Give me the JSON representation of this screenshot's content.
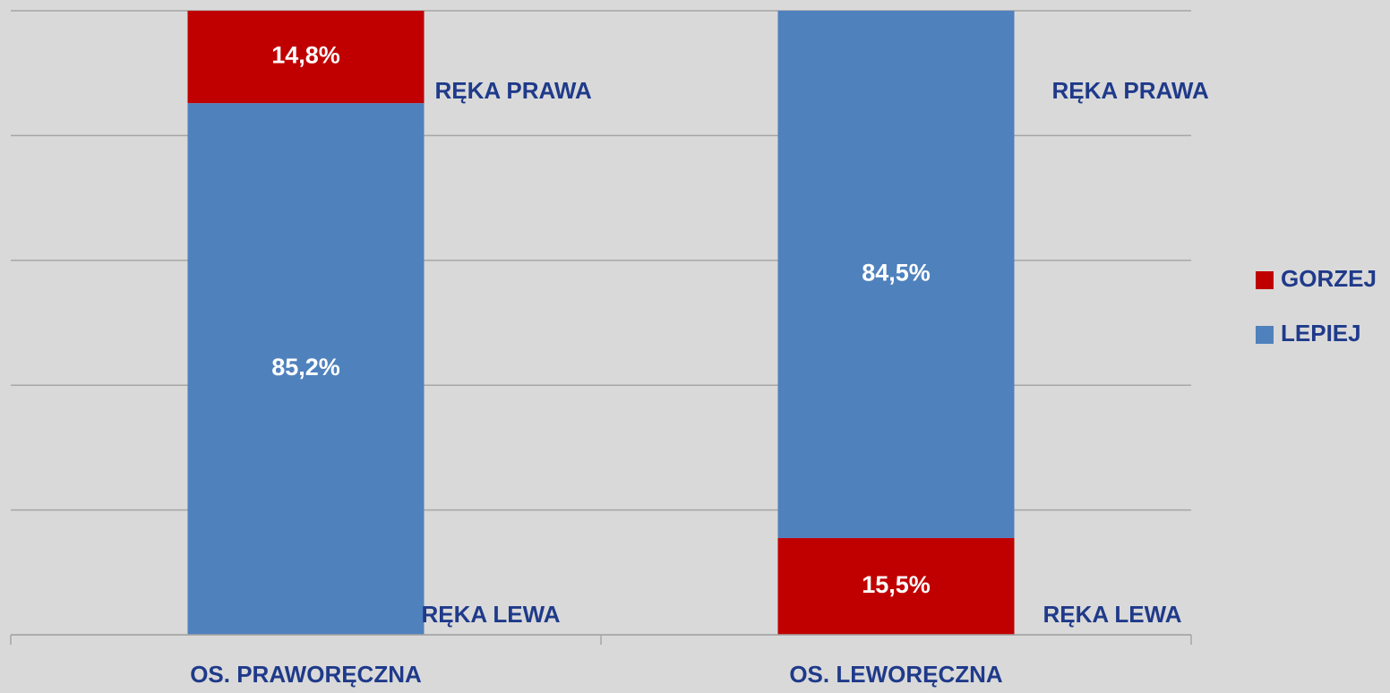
{
  "chart_data": {
    "type": "stacked_bar",
    "categories": [
      "OS. PRAWORĘCZNA",
      "OS. LEWORĘCZNA"
    ],
    "series": [
      {
        "name": "GORZEJ",
        "color": "#c00000",
        "values": [
          14.8,
          15.5
        ],
        "value_labels": [
          "14,8%",
          "15,5%"
        ]
      },
      {
        "name": "LEPIEJ",
        "color": "#4f81bd",
        "values": [
          85.2,
          84.5
        ],
        "value_labels": [
          "85,2%",
          "84,5%"
        ]
      }
    ],
    "stack_order": [
      [
        "LEPIEJ",
        "GORZEJ"
      ],
      [
        "GORZEJ",
        "LEPIEJ"
      ]
    ],
    "annotations": [
      [
        "RĘKA PRAWA",
        "RĘKA LEWA"
      ],
      [
        "RĘKA PRAWA",
        "RĘKA LEWA"
      ]
    ],
    "ylim": [
      0,
      100
    ],
    "yticks": [
      0,
      20,
      40,
      60,
      80,
      100
    ],
    "grid": true,
    "legend": "right"
  }
}
